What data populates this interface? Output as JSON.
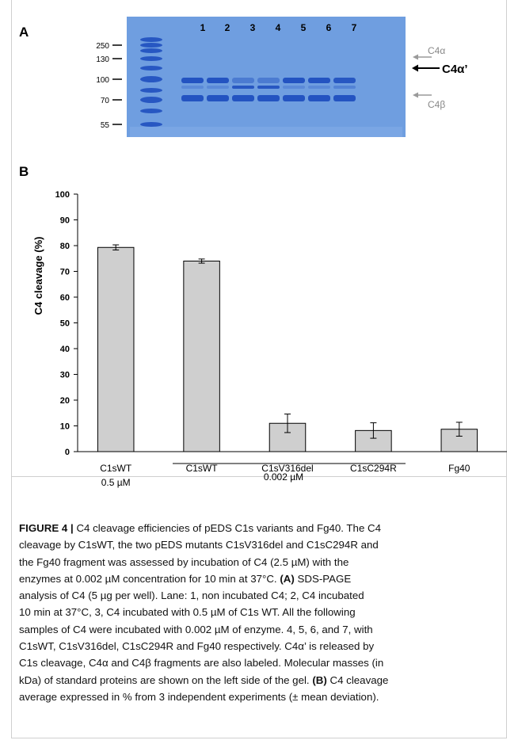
{
  "panel_a": {
    "label": "A",
    "lane_numbers": [
      "1",
      "2",
      "3",
      "4",
      "5",
      "6",
      "7"
    ],
    "marker_labels": [
      "250",
      "130",
      "100",
      "70",
      "55"
    ],
    "band_labels": {
      "alpha": "C4α",
      "alpha_prime": "C4α’",
      "beta": "C4β"
    },
    "colors": {
      "gel": "#6f9ee0",
      "band": "#1f4fbf",
      "gray_arrow": "#9a9a9a"
    }
  },
  "panel_b": {
    "label": "B",
    "group_label": "0.002 µM"
  },
  "chart_data": {
    "type": "bar",
    "categories": [
      "C1sWT\n0.5 µM",
      "C1sWT",
      "C1sV316del",
      "C1sC294R",
      "Fg40"
    ],
    "category_lines": [
      [
        "C1sWT",
        "0.5 µM"
      ],
      [
        "C1sWT"
      ],
      [
        "C1sV316del"
      ],
      [
        "C1sC294R"
      ],
      [
        "Fg40"
      ]
    ],
    "values": [
      79.3,
      74,
      11,
      8.2,
      8.7
    ],
    "errors": [
      1,
      0.8,
      3.6,
      3,
      2.7
    ],
    "ylabel": "C4 cleavage (%)",
    "xlabel": "",
    "ylim": [
      0,
      100
    ],
    "yticks": [
      "0",
      "10",
      "20",
      "30",
      "40",
      "50",
      "60",
      "70",
      "80",
      "90",
      "100"
    ],
    "grid": false,
    "bar_color": "#cfcfcf"
  },
  "caption": {
    "figure_label": "FIGURE 4 |",
    "lines": [
      " C4 cleavage efficiencies of pEDS C1s variants and Fg40. The C4",
      "cleavage by C1sWT, the two pEDS mutants C1sV316del and C1sC294R and",
      "the Fg40 fragment was assessed by incubation of C4 (2.5 µM) with the",
      "enzymes at 0.002 µM concentration for 10 min at 37°C.",
      " SDS-PAGE",
      "analysis of C4 (5 µg per well). Lane: 1, non incubated C4; 2, C4 incubated",
      "10 min at 37°C, 3, C4 incubated with 0.5 µM of C1s WT. All the following",
      "samples of C4 were incubated with 0.002 µM of enzyme. 4, 5, 6, and 7, with",
      "C1sWT, C1sV316del, C1sC294R and Fg40 respectively. C4α’ is released by",
      "C1s cleavage, C4α and C4β fragments are also labeled. Molecular masses (in",
      "kDa) of standard proteins are shown on the left side of the gel.",
      " C4 cleavage",
      "average expressed in % from 3 independent experiments (± mean deviation)."
    ],
    "ref_a": "(A)",
    "ref_b": "(B)"
  }
}
